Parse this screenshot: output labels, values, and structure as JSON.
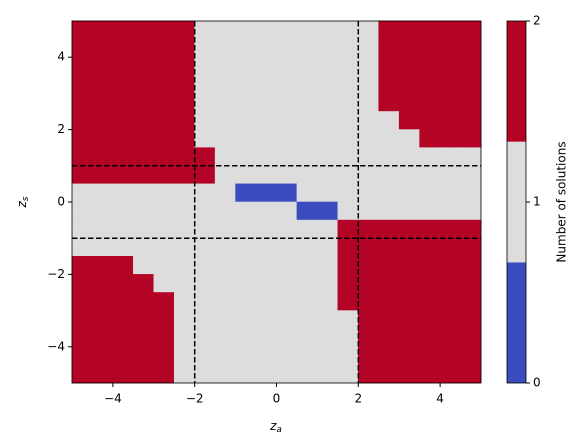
{
  "chart_data": {
    "type": "heatmap",
    "xlabel": [
      "z",
      "a"
    ],
    "ylabel": [
      "z",
      "s"
    ],
    "colorbar_label": "Number of solutions",
    "x": [
      -4.75,
      -4.25,
      -3.75,
      -3.25,
      -2.75,
      -2.25,
      -1.75,
      -1.25,
      -0.75,
      -0.25,
      0.25,
      0.75,
      1.25,
      1.75,
      2.25,
      2.75,
      3.25,
      3.75,
      4.25,
      4.75
    ],
    "y": [
      4.75,
      4.25,
      3.75,
      3.25,
      2.75,
      2.25,
      1.75,
      1.25,
      0.75,
      0.25,
      -0.25,
      -0.75,
      -1.25,
      -1.75,
      -2.25,
      -2.75,
      -3.25,
      -3.75,
      -4.25,
      -4.75
    ],
    "z": [
      [
        2,
        2,
        2,
        2,
        2,
        2,
        1,
        1,
        1,
        1,
        1,
        1,
        1,
        1,
        1,
        2,
        2,
        2,
        2,
        2
      ],
      [
        2,
        2,
        2,
        2,
        2,
        2,
        1,
        1,
        1,
        1,
        1,
        1,
        1,
        1,
        1,
        2,
        2,
        2,
        2,
        2
      ],
      [
        2,
        2,
        2,
        2,
        2,
        2,
        1,
        1,
        1,
        1,
        1,
        1,
        1,
        1,
        1,
        2,
        2,
        2,
        2,
        2
      ],
      [
        2,
        2,
        2,
        2,
        2,
        2,
        1,
        1,
        1,
        1,
        1,
        1,
        1,
        1,
        1,
        2,
        2,
        2,
        2,
        2
      ],
      [
        2,
        2,
        2,
        2,
        2,
        2,
        1,
        1,
        1,
        1,
        1,
        1,
        1,
        1,
        1,
        2,
        2,
        2,
        2,
        2
      ],
      [
        2,
        2,
        2,
        2,
        2,
        2,
        1,
        1,
        1,
        1,
        1,
        1,
        1,
        1,
        1,
        1,
        2,
        2,
        2,
        2
      ],
      [
        2,
        2,
        2,
        2,
        2,
        2,
        1,
        1,
        1,
        1,
        1,
        1,
        1,
        1,
        1,
        1,
        1,
        2,
        2,
        2
      ],
      [
        2,
        2,
        2,
        2,
        2,
        2,
        2,
        1,
        1,
        1,
        1,
        1,
        1,
        1,
        1,
        1,
        1,
        1,
        1,
        1
      ],
      [
        2,
        2,
        2,
        2,
        2,
        2,
        2,
        1,
        1,
        1,
        1,
        1,
        1,
        1,
        1,
        1,
        1,
        1,
        1,
        1
      ],
      [
        1,
        1,
        1,
        1,
        1,
        1,
        1,
        1,
        0,
        0,
        0,
        1,
        1,
        1,
        1,
        1,
        1,
        1,
        1,
        1
      ],
      [
        1,
        1,
        1,
        1,
        1,
        1,
        1,
        1,
        1,
        1,
        1,
        0,
        0,
        1,
        1,
        1,
        1,
        1,
        1,
        1
      ],
      [
        1,
        1,
        1,
        1,
        1,
        1,
        1,
        1,
        1,
        1,
        1,
        1,
        1,
        2,
        2,
        2,
        2,
        2,
        2,
        2
      ],
      [
        1,
        1,
        1,
        1,
        1,
        1,
        1,
        1,
        1,
        1,
        1,
        1,
        1,
        2,
        2,
        2,
        2,
        2,
        2,
        2
      ],
      [
        2,
        2,
        2,
        1,
        1,
        1,
        1,
        1,
        1,
        1,
        1,
        1,
        1,
        2,
        2,
        2,
        2,
        2,
        2,
        2
      ],
      [
        2,
        2,
        2,
        2,
        1,
        1,
        1,
        1,
        1,
        1,
        1,
        1,
        1,
        2,
        2,
        2,
        2,
        2,
        2,
        2
      ],
      [
        2,
        2,
        2,
        2,
        2,
        1,
        1,
        1,
        1,
        1,
        1,
        1,
        1,
        2,
        2,
        2,
        2,
        2,
        2,
        2
      ],
      [
        2,
        2,
        2,
        2,
        2,
        1,
        1,
        1,
        1,
        1,
        1,
        1,
        1,
        1,
        2,
        2,
        2,
        2,
        2,
        2
      ],
      [
        2,
        2,
        2,
        2,
        2,
        1,
        1,
        1,
        1,
        1,
        1,
        1,
        1,
        1,
        2,
        2,
        2,
        2,
        2,
        2
      ],
      [
        2,
        2,
        2,
        2,
        2,
        1,
        1,
        1,
        1,
        1,
        1,
        1,
        1,
        1,
        2,
        2,
        2,
        2,
        2,
        2
      ],
      [
        2,
        2,
        2,
        2,
        2,
        1,
        1,
        1,
        1,
        1,
        1,
        1,
        1,
        1,
        2,
        2,
        2,
        2,
        2,
        2
      ]
    ],
    "colors": [
      "#3b4cc0",
      "#dddddd",
      "#b40426"
    ],
    "clim": [
      0,
      2
    ],
    "cticks": [
      0,
      1,
      2
    ],
    "xlim": [
      -5,
      5
    ],
    "ylim": [
      -5,
      5
    ],
    "xticks": [
      {
        "value": -4,
        "label": "−4"
      },
      {
        "value": -2,
        "label": "−2"
      },
      0,
      2,
      4
    ],
    "yticks": [
      {
        "value": -4,
        "label": "−4"
      },
      {
        "value": -2,
        "label": "−2"
      },
      0,
      2,
      4
    ],
    "reference_lines": {
      "x": [
        -2,
        2
      ],
      "y": [
        -1,
        1
      ]
    }
  }
}
